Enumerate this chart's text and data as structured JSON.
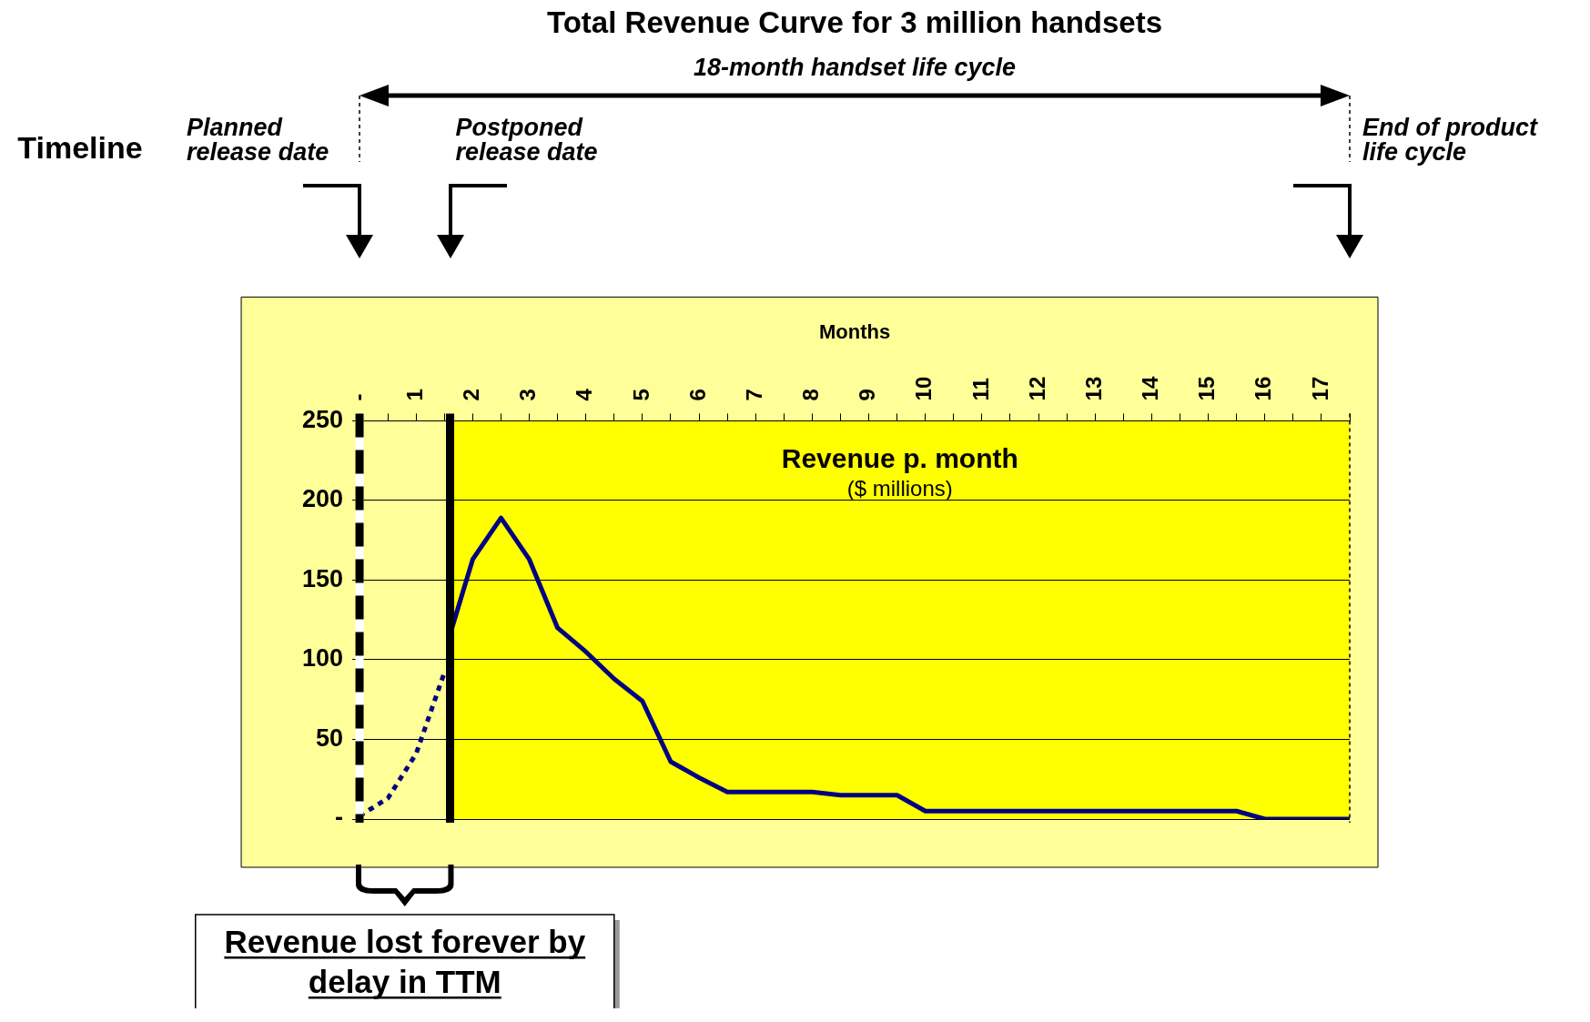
{
  "chart_data": {
    "type": "line",
    "title": "Total Revenue Curve for 3 million handsets",
    "xlabel": "Months",
    "annotations": [
      "Timeline",
      "18-month handset life cycle",
      "Revenue p. month",
      "($ millions)",
      "Revenue lost forever by delay in TTM",
      "Planned release date",
      "Postponed release date",
      "End of product life cycle"
    ],
    "series": [
      {
        "color": "#000080",
        "line_style": "dotted",
        "x": [
          0,
          0.5,
          1,
          1.5
        ],
        "values": [
          2,
          13,
          41,
          92
        ]
      },
      {
        "color": "#000080",
        "line_style": "solid",
        "x": [
          1.6,
          2,
          2.5,
          3,
          3.5,
          4,
          4.5,
          5,
          5.5,
          6,
          6.5,
          7,
          7.5,
          8,
          8.5,
          9,
          9.5,
          10,
          10.5,
          11,
          11.5,
          12,
          12.5,
          13,
          13.5,
          14,
          14.5,
          15,
          15.5,
          16,
          16.5,
          17,
          17.5
        ],
        "values": [
          116,
          163,
          189,
          163,
          120,
          105,
          88,
          74,
          36,
          26,
          17,
          17,
          17,
          17,
          15,
          15,
          15,
          5,
          5,
          5,
          5,
          5,
          5,
          5,
          5,
          5,
          5,
          5,
          5,
          0,
          0,
          0,
          0
        ]
      }
    ],
    "xlim": [
      0,
      17.5
    ],
    "xticks": [
      {
        "value": 0,
        "label": "-"
      },
      {
        "value": 0.5,
        "label": null
      },
      1,
      {
        "value": 1.5,
        "label": null
      },
      2,
      {
        "value": 2.5,
        "label": null
      },
      3,
      {
        "value": 3.5,
        "label": null
      },
      4,
      {
        "value": 4.5,
        "label": null
      },
      5,
      {
        "value": 5.5,
        "label": null
      },
      6,
      {
        "value": 6.5,
        "label": null
      },
      7,
      {
        "value": 7.5,
        "label": null
      },
      8,
      {
        "value": 8.5,
        "label": null
      },
      9,
      {
        "value": 9.5,
        "label": null
      },
      10,
      {
        "value": 10.5,
        "label": null
      },
      11,
      {
        "value": 11.5,
        "label": null
      },
      12,
      {
        "value": 12.5,
        "label": null
      },
      13,
      {
        "value": 13.5,
        "label": null
      },
      14,
      {
        "value": 14.5,
        "label": null
      },
      15,
      {
        "value": 15.5,
        "label": null
      },
      16,
      {
        "value": 16.5,
        "label": null
      },
      17,
      {
        "value": 17.5,
        "label": null
      }
    ],
    "ylim": [
      0,
      250
    ],
    "yticks": [
      {
        "value": 0,
        "label": "-"
      },
      50,
      100,
      150,
      200,
      250
    ],
    "grid": "y",
    "legend": false,
    "ref_lines": [
      {
        "axis": "x",
        "value": 0,
        "color": "#000000",
        "line_style": "dashed"
      },
      {
        "axis": "x",
        "value": 1.6,
        "color": "#000000",
        "line_style": "solid"
      },
      {
        "axis": "x",
        "value": 17.5,
        "color": "#000000",
        "line_style": "dotted"
      }
    ],
    "bands": [
      {
        "axis": "x",
        "from": 0,
        "to": 1.6,
        "color": "#ffff99"
      }
    ]
  }
}
